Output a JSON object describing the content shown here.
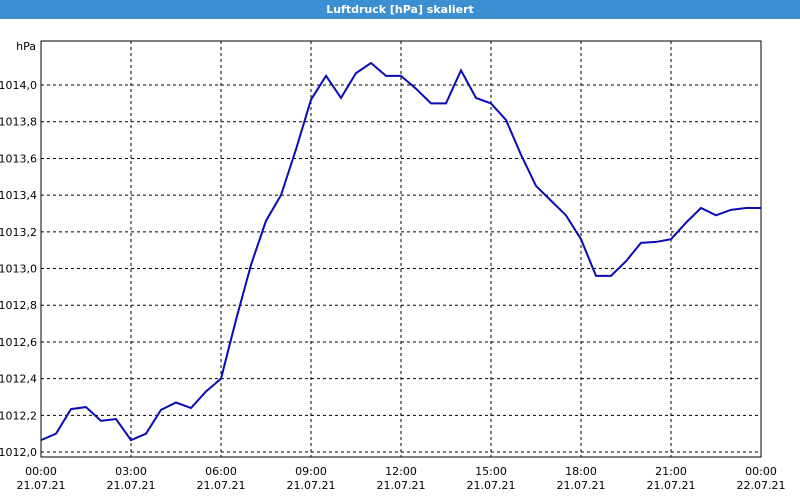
{
  "chart_data": {
    "type": "line",
    "title": "Luftdruck [hPa] skaliert",
    "y_label": "hPa",
    "x": [
      0,
      0.5,
      1,
      1.5,
      2,
      2.5,
      3,
      3.5,
      4,
      4.5,
      5,
      5.5,
      6,
      6.5,
      7,
      7.5,
      8,
      8.5,
      9,
      9.5,
      10,
      10.5,
      11,
      11.5,
      12,
      12.5,
      13,
      13.5,
      14,
      14.5,
      15,
      15.5,
      16,
      16.5,
      17,
      17.5,
      18,
      18.5,
      19,
      19.5,
      20,
      20.5,
      21,
      21.5,
      22,
      22.5,
      23,
      23.5,
      24
    ],
    "series": [
      {
        "name": "Luftdruck",
        "color": "#0a0ab4",
        "values": [
          1012.065,
          1012.1,
          1012.234,
          1012.245,
          1012.17,
          1012.18,
          1012.065,
          1012.1,
          1012.23,
          1012.27,
          1012.24,
          1012.33,
          1012.4,
          1012.72,
          1013.02,
          1013.26,
          1013.4,
          1013.65,
          1013.92,
          1014.05,
          1013.93,
          1014.065,
          1014.12,
          1014.05,
          1014.05,
          1013.98,
          1013.9,
          1013.9,
          1014.08,
          1013.93,
          1013.9,
          1013.81,
          1013.62,
          1013.45,
          1013.37,
          1013.29,
          1013.16,
          1012.96,
          1012.96,
          1013.04,
          1013.14,
          1013.145,
          1013.16,
          1013.25,
          1013.33,
          1013.29,
          1013.32,
          1013.33,
          1013.33
        ]
      }
    ],
    "xlim": [
      0,
      24
    ],
    "xticks": [
      {
        "value": 0,
        "label": "00:00 21.07.21"
      },
      {
        "value": 3,
        "label": "03:00 21.07.21"
      },
      {
        "value": 6,
        "label": "06:00 21.07.21"
      },
      {
        "value": 9,
        "label": "09:00 21.07.21"
      },
      {
        "value": 12,
        "label": "12:00 21.07.21"
      },
      {
        "value": 15,
        "label": "15:00 21.07.21"
      },
      {
        "value": 18,
        "label": "18:00 21.07.21"
      },
      {
        "value": 21,
        "label": "21:00 21.07.21"
      },
      {
        "value": 24,
        "label": "00:00 22.07.21"
      }
    ],
    "ylim": [
      1011.973,
      1014.24
    ],
    "yticks": [
      {
        "value": 1012.0,
        "label": "1012,0"
      },
      {
        "value": 1012.2,
        "label": "1012,2"
      },
      {
        "value": 1012.4,
        "label": "1012,4"
      },
      {
        "value": 1012.6,
        "label": "1012,6"
      },
      {
        "value": 1012.8,
        "label": "1012,8"
      },
      {
        "value": 1013.0,
        "label": "1013,0"
      },
      {
        "value": 1013.2,
        "label": "1013,2"
      },
      {
        "value": 1013.4,
        "label": "1013,4"
      },
      {
        "value": 1013.6,
        "label": "1013,6"
      },
      {
        "value": 1013.8,
        "label": "1013,8"
      },
      {
        "value": 1014.0,
        "label": "1014,0"
      }
    ],
    "grid": true
  }
}
